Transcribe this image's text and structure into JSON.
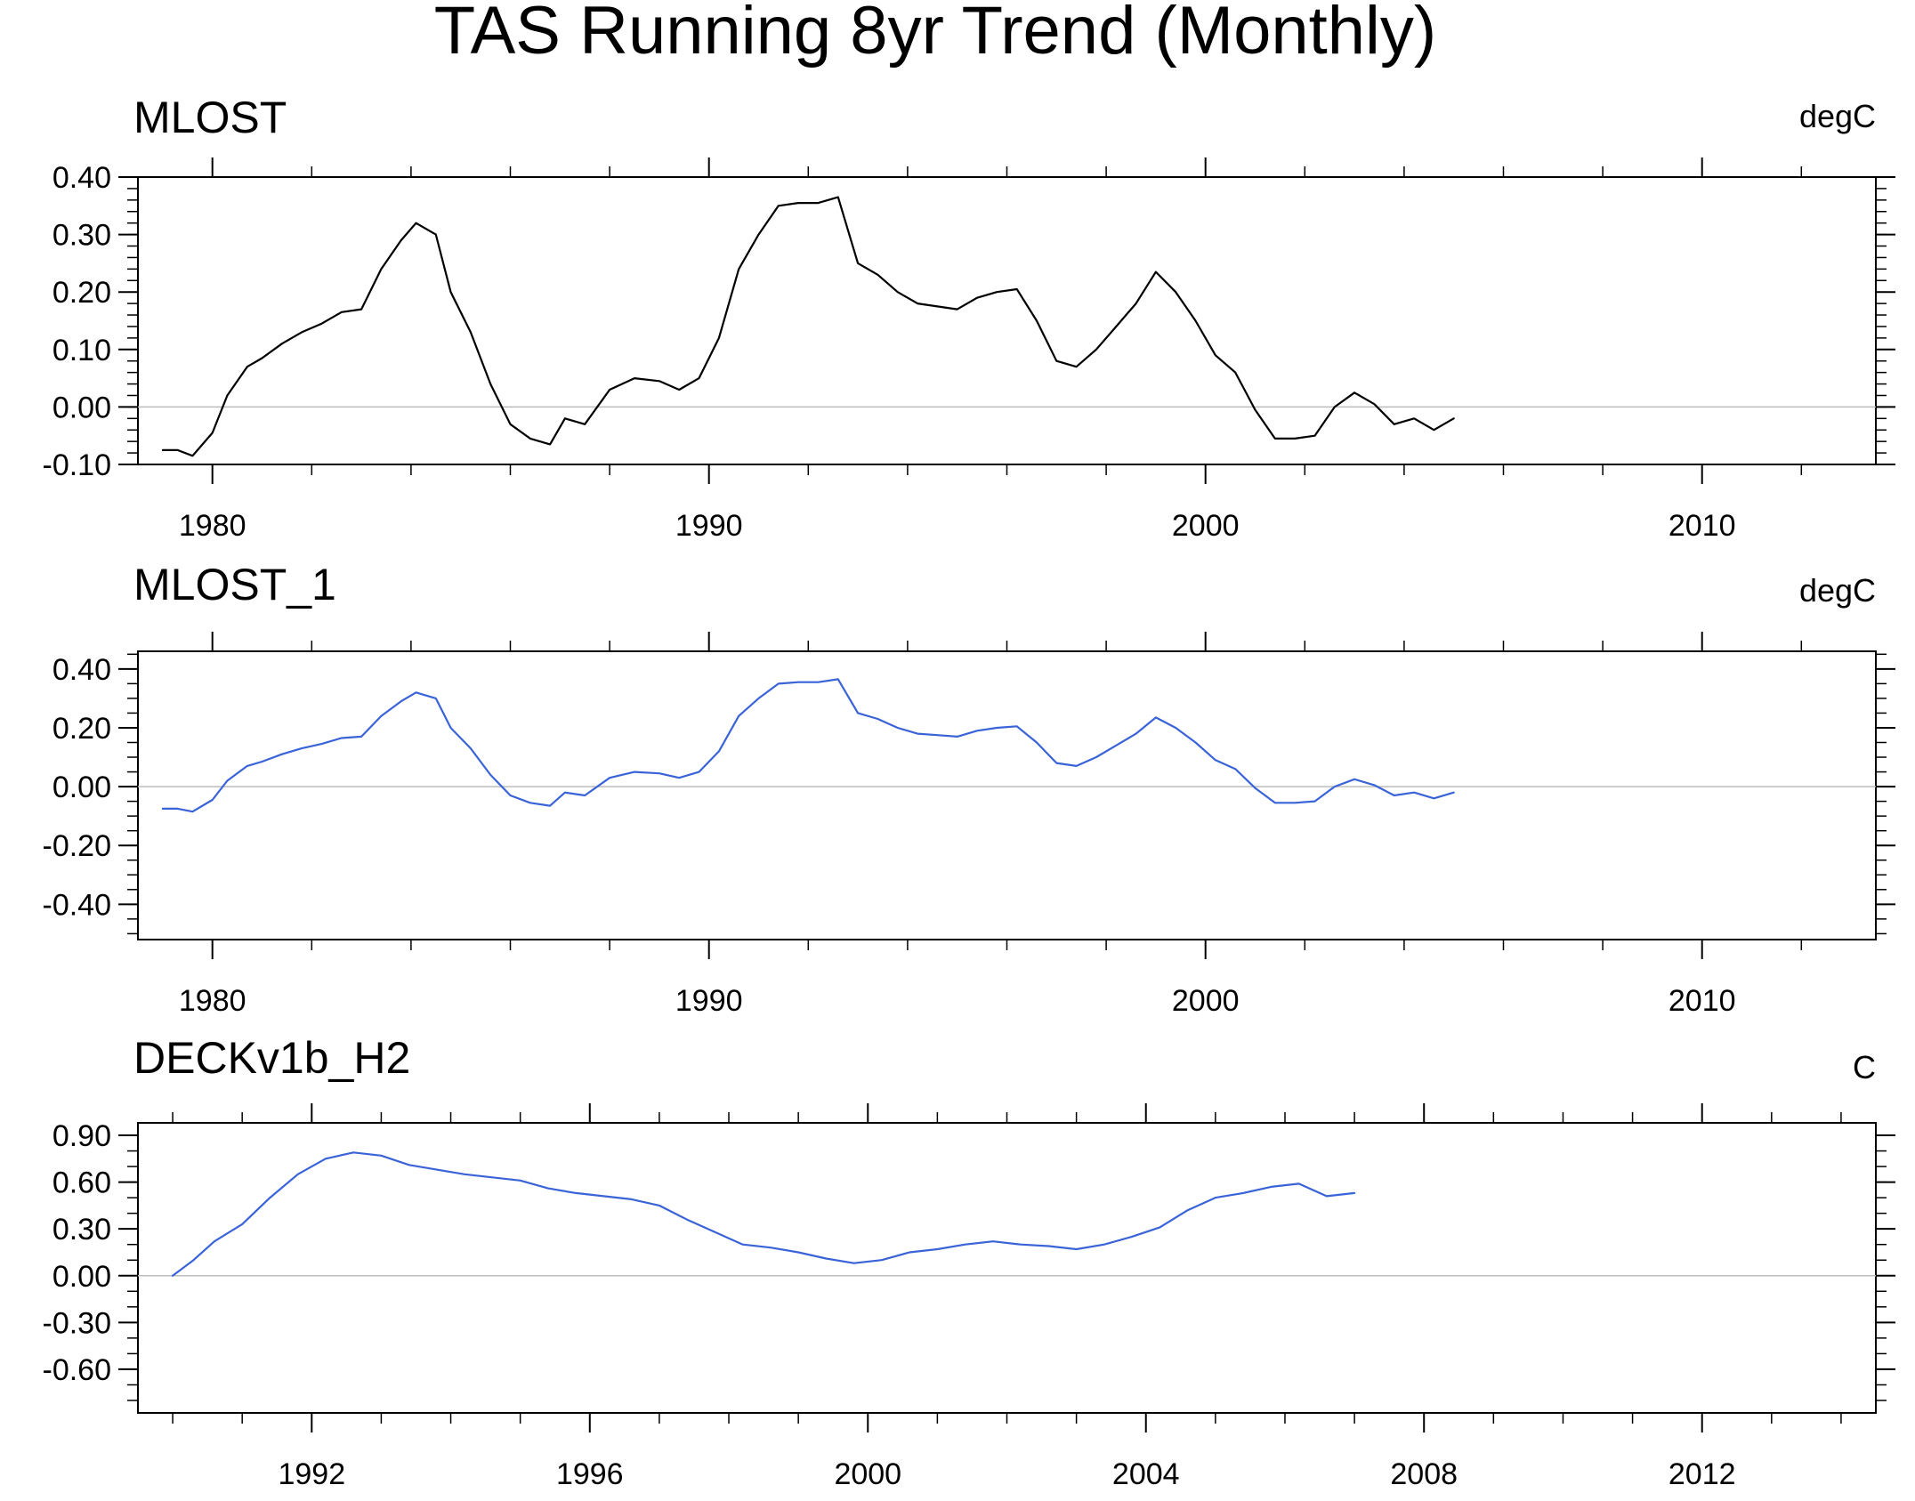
{
  "figure": {
    "title": "TAS Running 8yr Trend (Monthly)"
  },
  "colors": {
    "axis": "#000000",
    "zero_line": "#bdbdbd",
    "series_black": "#000000",
    "series_blue": "#3a63d8"
  },
  "chart_data": [
    {
      "type": "line",
      "title": "MLOST",
      "units": "degC",
      "xlim": [
        1978.5,
        2013.5
      ],
      "ylim": [
        -0.1,
        0.4
      ],
      "xticks": [
        1980,
        1990,
        2000,
        2010
      ],
      "xtick_labels": [
        "1980",
        "1990",
        "2000",
        "2010"
      ],
      "xminor": [
        1982,
        1984,
        1986,
        1988,
        1992,
        1994,
        1996,
        1998,
        2002,
        2004,
        2006,
        2008,
        2012
      ],
      "yticks": [
        -0.1,
        0.0,
        0.1,
        0.2,
        0.3,
        0.4
      ],
      "ytick_labels": [
        "-0.10",
        "0.00",
        "0.10",
        "0.20",
        "0.30",
        "0.40"
      ],
      "yminor_step": 0.02,
      "zero_line": true,
      "color": "#000000",
      "series": [
        {
          "x": [
            1979.0,
            1979.3,
            1979.6,
            1980.0,
            1980.3,
            1980.7,
            1981.0,
            1981.4,
            1981.8,
            1982.2,
            1982.6,
            1983.0,
            1983.4,
            1983.8,
            1984.1,
            1984.5,
            1984.8,
            1985.2,
            1985.6,
            1986.0,
            1986.4,
            1986.8,
            1987.1,
            1987.5,
            1988.0,
            1988.5,
            1989.0,
            1989.4,
            1989.8,
            1990.2,
            1990.6,
            1991.0,
            1991.4,
            1991.8,
            1992.2,
            1992.6,
            1993.0,
            1993.4,
            1993.8,
            1994.2,
            1994.6,
            1995.0,
            1995.4,
            1995.8,
            1996.2,
            1996.6,
            1997.0,
            1997.4,
            1997.8,
            1998.2,
            1998.6,
            1999.0,
            1999.4,
            1999.8,
            2000.2,
            2000.6,
            2001.0,
            2001.4,
            2001.8,
            2002.2,
            2002.6,
            2003.0,
            2003.4,
            2003.8,
            2004.2,
            2004.6,
            2005.0
          ],
          "y": [
            -0.075,
            -0.075,
            -0.085,
            -0.045,
            0.02,
            0.07,
            0.085,
            0.11,
            0.13,
            0.145,
            0.165,
            0.17,
            0.24,
            0.29,
            0.32,
            0.3,
            0.2,
            0.13,
            0.04,
            -0.03,
            -0.055,
            -0.065,
            -0.02,
            -0.03,
            0.03,
            0.05,
            0.045,
            0.03,
            0.05,
            0.12,
            0.24,
            0.3,
            0.35,
            0.355,
            0.355,
            0.365,
            0.25,
            0.23,
            0.2,
            0.18,
            0.175,
            0.17,
            0.19,
            0.2,
            0.205,
            0.15,
            0.08,
            0.07,
            0.1,
            0.14,
            0.18,
            0.235,
            0.2,
            0.15,
            0.09,
            0.06,
            -0.005,
            -0.055,
            -0.055,
            -0.05,
            0.0,
            0.025,
            0.005,
            -0.03,
            -0.02,
            -0.04,
            -0.02
          ]
        }
      ]
    },
    {
      "type": "line",
      "title": "MLOST_1",
      "units": "degC",
      "xlim": [
        1978.5,
        2013.5
      ],
      "ylim": [
        -0.52,
        0.46
      ],
      "xticks": [
        1980,
        1990,
        2000,
        2010
      ],
      "xtick_labels": [
        "1980",
        "1990",
        "2000",
        "2010"
      ],
      "xminor": [
        1982,
        1984,
        1986,
        1988,
        1992,
        1994,
        1996,
        1998,
        2002,
        2004,
        2006,
        2008,
        2012
      ],
      "yticks": [
        -0.4,
        -0.2,
        0.0,
        0.2,
        0.4
      ],
      "ytick_labels": [
        "-0.40",
        "-0.20",
        "0.00",
        "0.20",
        "0.40"
      ],
      "yminor_step": 0.05,
      "zero_line": true,
      "color": "#3a63d8",
      "series": [
        {
          "x": [
            1979.0,
            1979.3,
            1979.6,
            1980.0,
            1980.3,
            1980.7,
            1981.0,
            1981.4,
            1981.8,
            1982.2,
            1982.6,
            1983.0,
            1983.4,
            1983.8,
            1984.1,
            1984.5,
            1984.8,
            1985.2,
            1985.6,
            1986.0,
            1986.4,
            1986.8,
            1987.1,
            1987.5,
            1988.0,
            1988.5,
            1989.0,
            1989.4,
            1989.8,
            1990.2,
            1990.6,
            1991.0,
            1991.4,
            1991.8,
            1992.2,
            1992.6,
            1993.0,
            1993.4,
            1993.8,
            1994.2,
            1994.6,
            1995.0,
            1995.4,
            1995.8,
            1996.2,
            1996.6,
            1997.0,
            1997.4,
            1997.8,
            1998.2,
            1998.6,
            1999.0,
            1999.4,
            1999.8,
            2000.2,
            2000.6,
            2001.0,
            2001.4,
            2001.8,
            2002.2,
            2002.6,
            2003.0,
            2003.4,
            2003.8,
            2004.2,
            2004.6,
            2005.0
          ],
          "y": [
            -0.075,
            -0.075,
            -0.085,
            -0.045,
            0.02,
            0.07,
            0.085,
            0.11,
            0.13,
            0.145,
            0.165,
            0.17,
            0.24,
            0.29,
            0.32,
            0.3,
            0.2,
            0.13,
            0.04,
            -0.03,
            -0.055,
            -0.065,
            -0.02,
            -0.03,
            0.03,
            0.05,
            0.045,
            0.03,
            0.05,
            0.12,
            0.24,
            0.3,
            0.35,
            0.355,
            0.355,
            0.365,
            0.25,
            0.23,
            0.2,
            0.18,
            0.175,
            0.17,
            0.19,
            0.2,
            0.205,
            0.15,
            0.08,
            0.07,
            0.1,
            0.14,
            0.18,
            0.235,
            0.2,
            0.15,
            0.09,
            0.06,
            -0.005,
            -0.055,
            -0.055,
            -0.05,
            0.0,
            0.025,
            0.005,
            -0.03,
            -0.02,
            -0.04,
            -0.02
          ]
        }
      ]
    },
    {
      "type": "line",
      "title": "DECKv1b_H2",
      "units": "C",
      "xlim": [
        1989.5,
        2014.5
      ],
      "ylim": [
        -0.88,
        0.98
      ],
      "xticks": [
        1992,
        1996,
        2000,
        2004,
        2008,
        2012
      ],
      "xtick_labels": [
        "1992",
        "1996",
        "2000",
        "2004",
        "2008",
        "2012"
      ],
      "xminor": [
        1990,
        1991,
        1993,
        1994,
        1995,
        1997,
        1998,
        1999,
        2001,
        2002,
        2003,
        2005,
        2006,
        2007,
        2009,
        2010,
        2011,
        2013,
        2014
      ],
      "yticks": [
        -0.6,
        -0.3,
        0.0,
        0.3,
        0.6,
        0.9
      ],
      "ytick_labels": [
        "-0.60",
        "-0.30",
        "0.00",
        "0.30",
        "0.60",
        "0.90"
      ],
      "yminor_step": 0.1,
      "zero_line": true,
      "color": "#3a63d8",
      "series": [
        {
          "x": [
            1990.0,
            1990.3,
            1990.6,
            1991.0,
            1991.4,
            1991.8,
            1992.2,
            1992.6,
            1993.0,
            1993.4,
            1993.8,
            1994.2,
            1994.6,
            1995.0,
            1995.4,
            1995.8,
            1996.2,
            1996.6,
            1997.0,
            1997.4,
            1997.8,
            1998.2,
            1998.6,
            1999.0,
            1999.4,
            1999.8,
            2000.2,
            2000.6,
            2001.0,
            2001.4,
            2001.8,
            2002.2,
            2002.6,
            2003.0,
            2003.4,
            2003.8,
            2004.2,
            2004.6,
            2005.0,
            2005.4,
            2005.8,
            2006.2,
            2006.6,
            2007.0
          ],
          "y": [
            0.0,
            0.1,
            0.22,
            0.33,
            0.5,
            0.65,
            0.75,
            0.79,
            0.77,
            0.71,
            0.68,
            0.65,
            0.63,
            0.61,
            0.56,
            0.53,
            0.51,
            0.49,
            0.45,
            0.36,
            0.28,
            0.2,
            0.18,
            0.15,
            0.11,
            0.08,
            0.1,
            0.15,
            0.17,
            0.2,
            0.22,
            0.2,
            0.19,
            0.17,
            0.2,
            0.25,
            0.31,
            0.42,
            0.5,
            0.53,
            0.57,
            0.59,
            0.51,
            0.53
          ]
        }
      ]
    }
  ]
}
